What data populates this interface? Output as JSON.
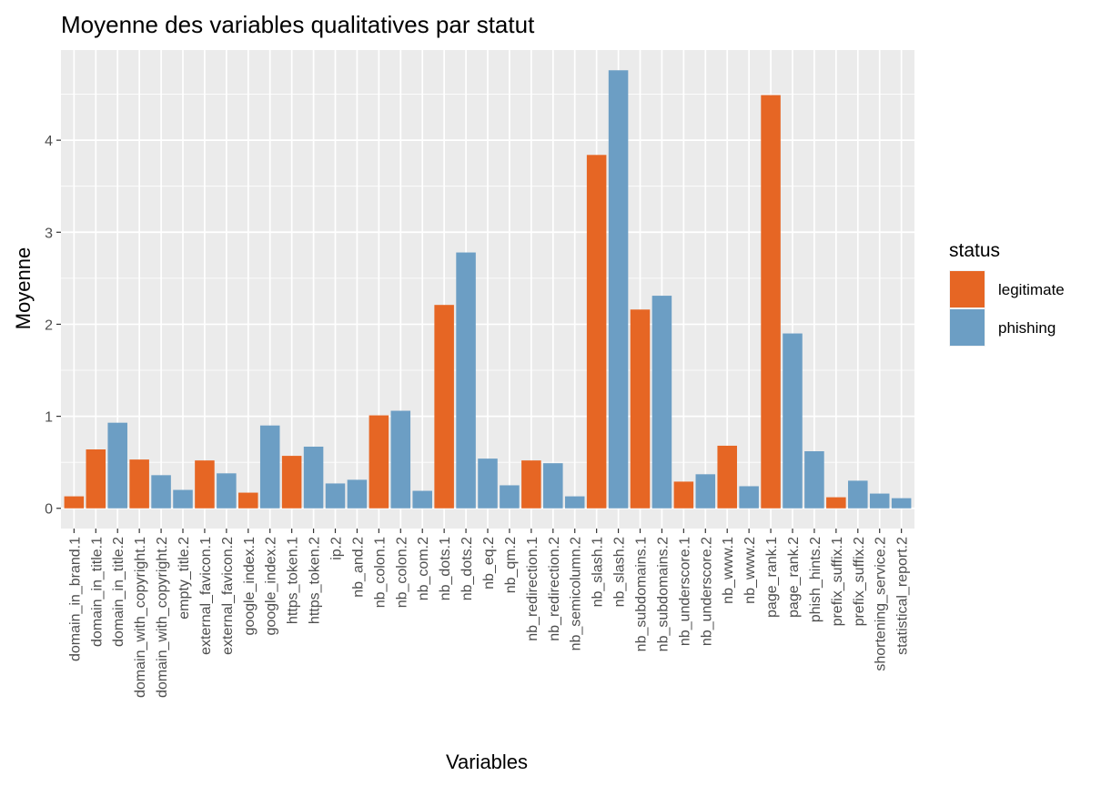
{
  "chart_data": {
    "type": "bar",
    "title": "Moyenne des variables qualitatives par statut",
    "xlabel": "Variables",
    "ylabel": "Moyenne",
    "ylim": [
      -0.22,
      4.98
    ],
    "yticks": [
      0,
      1,
      2,
      3,
      4
    ],
    "grid": true,
    "legend": {
      "title": "status",
      "placement": "right",
      "entries": [
        {
          "name": "legitimate",
          "color": "#E66624"
        },
        {
          "name": "phishing",
          "color": "#6C9EC4"
        }
      ]
    },
    "colors": {
      "legitimate": "#E66624",
      "phishing": "#6C9EC4",
      "panel": "#EBEBEB",
      "grid": "#FFFFFF"
    },
    "bars": [
      {
        "category": "domain_in_brand.1",
        "status": "legitimate",
        "value": 0.13
      },
      {
        "category": "domain_in_title.1",
        "status": "legitimate",
        "value": 0.64
      },
      {
        "category": "domain_in_title.2",
        "status": "phishing",
        "value": 0.93
      },
      {
        "category": "domain_with_copyright.1",
        "status": "legitimate",
        "value": 0.53
      },
      {
        "category": "domain_with_copyright.2",
        "status": "phishing",
        "value": 0.36
      },
      {
        "category": "empty_title.2",
        "status": "phishing",
        "value": 0.2
      },
      {
        "category": "external_favicon.1",
        "status": "legitimate",
        "value": 0.52
      },
      {
        "category": "external_favicon.2",
        "status": "phishing",
        "value": 0.38
      },
      {
        "category": "google_index.1",
        "status": "legitimate",
        "value": 0.17
      },
      {
        "category": "google_index.2",
        "status": "phishing",
        "value": 0.9
      },
      {
        "category": "https_token.1",
        "status": "legitimate",
        "value": 0.57
      },
      {
        "category": "https_token.2",
        "status": "phishing",
        "value": 0.67
      },
      {
        "category": "ip.2",
        "status": "phishing",
        "value": 0.27
      },
      {
        "category": "nb_and.2",
        "status": "phishing",
        "value": 0.31
      },
      {
        "category": "nb_colon.1",
        "status": "legitimate",
        "value": 1.01
      },
      {
        "category": "nb_colon.2",
        "status": "phishing",
        "value": 1.06
      },
      {
        "category": "nb_com.2",
        "status": "phishing",
        "value": 0.19
      },
      {
        "category": "nb_dots.1",
        "status": "legitimate",
        "value": 2.21
      },
      {
        "category": "nb_dots.2",
        "status": "phishing",
        "value": 2.78
      },
      {
        "category": "nb_eq.2",
        "status": "phishing",
        "value": 0.54
      },
      {
        "category": "nb_qm.2",
        "status": "phishing",
        "value": 0.25
      },
      {
        "category": "nb_redirection.1",
        "status": "legitimate",
        "value": 0.52
      },
      {
        "category": "nb_redirection.2",
        "status": "phishing",
        "value": 0.49
      },
      {
        "category": "nb_semicolumn.2",
        "status": "phishing",
        "value": 0.13
      },
      {
        "category": "nb_slash.1",
        "status": "legitimate",
        "value": 3.84
      },
      {
        "category": "nb_slash.2",
        "status": "phishing",
        "value": 4.76
      },
      {
        "category": "nb_subdomains.1",
        "status": "legitimate",
        "value": 2.16
      },
      {
        "category": "nb_subdomains.2",
        "status": "phishing",
        "value": 2.31
      },
      {
        "category": "nb_underscore.1",
        "status": "legitimate",
        "value": 0.29
      },
      {
        "category": "nb_underscore.2",
        "status": "phishing",
        "value": 0.37
      },
      {
        "category": "nb_www.1",
        "status": "legitimate",
        "value": 0.68
      },
      {
        "category": "nb_www.2",
        "status": "phishing",
        "value": 0.24
      },
      {
        "category": "page_rank.1",
        "status": "legitimate",
        "value": 4.49
      },
      {
        "category": "page_rank.2",
        "status": "phishing",
        "value": 1.9
      },
      {
        "category": "phish_hints.2",
        "status": "phishing",
        "value": 0.62
      },
      {
        "category": "prefix_suffix.1",
        "status": "legitimate",
        "value": 0.12
      },
      {
        "category": "prefix_suffix.2",
        "status": "phishing",
        "value": 0.3
      },
      {
        "category": "shortening_service.2",
        "status": "phishing",
        "value": 0.16
      },
      {
        "category": "statistical_report.2",
        "status": "phishing",
        "value": 0.11
      }
    ]
  }
}
